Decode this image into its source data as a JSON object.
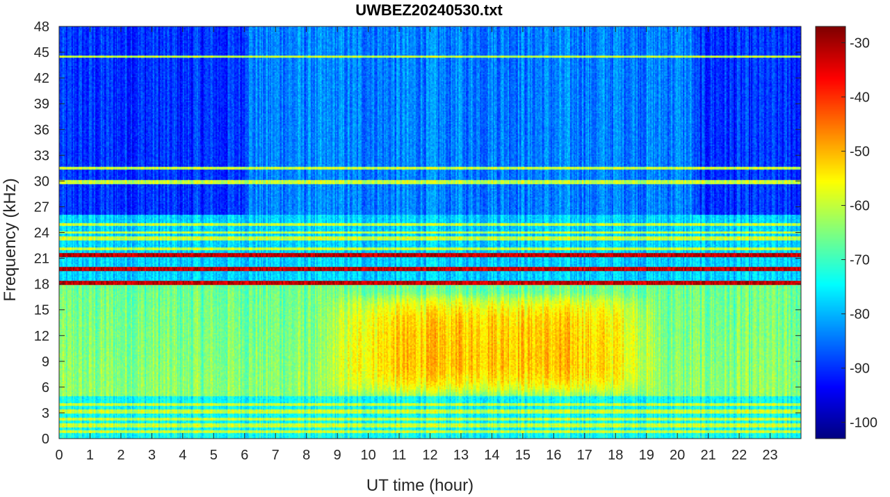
{
  "chart_data": {
    "type": "heatmap",
    "title": "UWBEZ20240530.txt",
    "xlabel": "UT time (hour)",
    "ylabel": "Frequency (kHz)",
    "xlim": [
      0,
      24
    ],
    "ylim": [
      0,
      48
    ],
    "x_ticks": [
      0,
      1,
      2,
      3,
      4,
      5,
      6,
      7,
      8,
      9,
      10,
      11,
      12,
      13,
      14,
      15,
      16,
      17,
      18,
      19,
      20,
      21,
      22,
      23
    ],
    "y_ticks": [
      0,
      3,
      6,
      9,
      12,
      15,
      18,
      21,
      24,
      27,
      30,
      33,
      36,
      39,
      42,
      45,
      48
    ],
    "colorbar": {
      "colormap": "jet",
      "range": [
        -103,
        -27
      ],
      "ticks": [
        -30,
        -40,
        -50,
        -60,
        -70,
        -80,
        -90,
        -100
      ]
    },
    "features": {
      "background_level": -78,
      "day_enhancement": {
        "hours": [
          8.5,
          19.5
        ],
        "freq_khz": [
          5,
          17
        ],
        "peak_level": -48
      },
      "strong_lines_khz": [
        19.8,
        21.4,
        18.2
      ],
      "moderate_lines_khz": [
        25.0,
        24.0,
        23.3,
        22.1,
        4.0,
        3.1,
        2.2,
        1.5,
        0.8,
        31.5,
        44.5,
        29.8
      ]
    }
  }
}
